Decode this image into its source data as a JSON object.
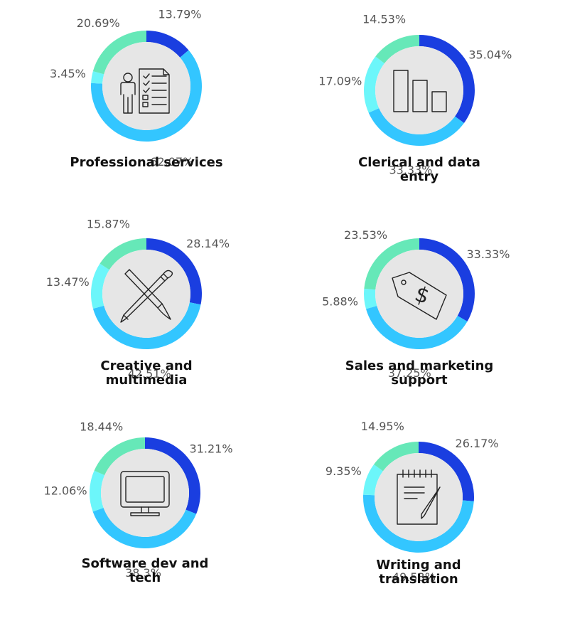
{
  "colors": {
    "segments": [
      "#1a3ee0",
      "#33c6ff",
      "#6cf6fa",
      "#66e8b8"
    ],
    "center": "#e6e6e6",
    "labels": "#555555",
    "titles": "#111111"
  },
  "chart_data": [
    {
      "type": "pie",
      "title": "Professional services",
      "title_lines": [
        "Professional services"
      ],
      "icon": "professional-checklist-icon",
      "values": [
        13.79,
        62.07,
        3.45,
        20.69
      ],
      "labels": [
        "13.79%",
        "62.07%",
        "3.45%",
        "20.69%"
      ]
    },
    {
      "type": "pie",
      "title": "Clerical and data entry",
      "title_lines": [
        "Clerical and data",
        "entry"
      ],
      "icon": "bar-chart-icon",
      "values": [
        35.04,
        33.33,
        17.09,
        14.53
      ],
      "labels": [
        "35.04%",
        "33.33%",
        "17.09%",
        "14.53%"
      ]
    },
    {
      "type": "pie",
      "title": "Creative and multimedia",
      "title_lines": [
        "Creative and",
        "multimedia"
      ],
      "icon": "pencil-brush-icon",
      "values": [
        28.14,
        42.51,
        13.47,
        15.87
      ],
      "labels": [
        "28.14%",
        "42.51%",
        "13.47%",
        "15.87%"
      ]
    },
    {
      "type": "pie",
      "title": "Sales and marketing support",
      "title_lines": [
        "Sales and marketing",
        "support"
      ],
      "icon": "price-tag-icon",
      "values": [
        33.33,
        37.25,
        5.88,
        23.53
      ],
      "labels": [
        "33.33%",
        "37.25%",
        "5.88%",
        "23.53%"
      ]
    },
    {
      "type": "pie",
      "title": "Software dev and tech",
      "title_lines": [
        "Software dev and",
        "tech"
      ],
      "icon": "computer-monitor-icon",
      "values": [
        31.21,
        38.3,
        12.06,
        18.44
      ],
      "labels": [
        "31.21%",
        "38.3%",
        "12.06%",
        "18.44%"
      ]
    },
    {
      "type": "pie",
      "title": "Writing and translation",
      "title_lines": [
        "Writing and",
        "translation"
      ],
      "icon": "notepad-pen-icon",
      "values": [
        26.17,
        49.53,
        9.35,
        14.95
      ],
      "labels": [
        "26.17%",
        "49.53%",
        "9.35%",
        "14.95%"
      ]
    }
  ]
}
